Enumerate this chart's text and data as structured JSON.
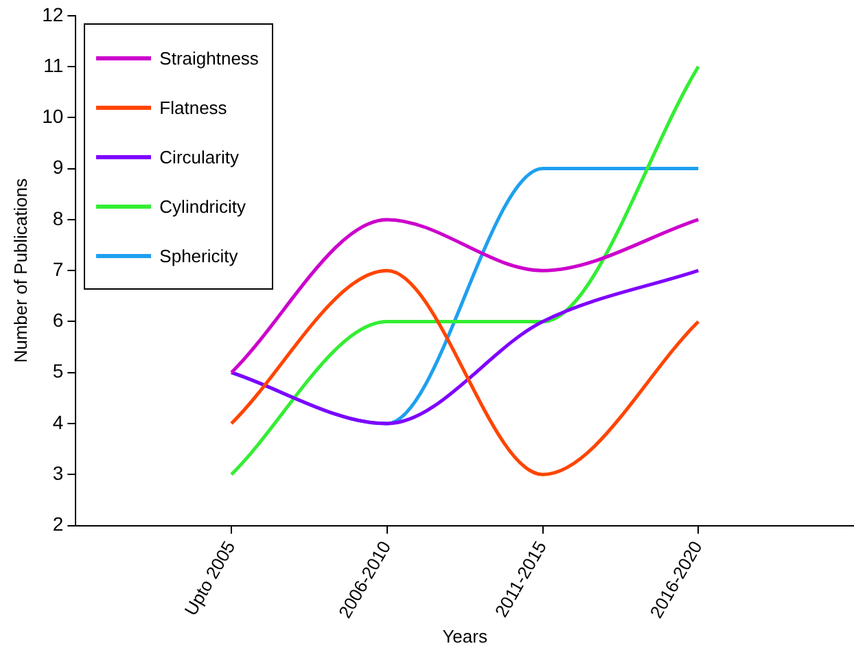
{
  "chart_data": {
    "type": "line",
    "xlabel": "Years",
    "ylabel": "Number of Publications",
    "categories": [
      "Upto 2005",
      "2006-2010",
      "2011-2015",
      "2016-2020"
    ],
    "series": [
      {
        "name": "Straightness",
        "color": "#cc00cc",
        "values": [
          5,
          8,
          7,
          8
        ]
      },
      {
        "name": "Flatness",
        "color": "#ff4500",
        "values": [
          4,
          7,
          3,
          6
        ]
      },
      {
        "name": "Circularity",
        "color": "#7f00ff",
        "values": [
          5,
          4,
          6,
          7
        ]
      },
      {
        "name": "Cylindricity",
        "color": "#33ee33",
        "values": [
          3,
          6,
          6,
          11
        ]
      },
      {
        "name": "Sphericity",
        "color": "#1ea0f0",
        "values": [
          5,
          4,
          9,
          9
        ]
      }
    ],
    "ylim": [
      2,
      12
    ],
    "yticks": [
      2,
      3,
      4,
      5,
      6,
      7,
      8,
      9,
      10,
      11,
      12
    ],
    "grid": false,
    "legend": "top left",
    "marker": "none",
    "line_style": "solid"
  }
}
